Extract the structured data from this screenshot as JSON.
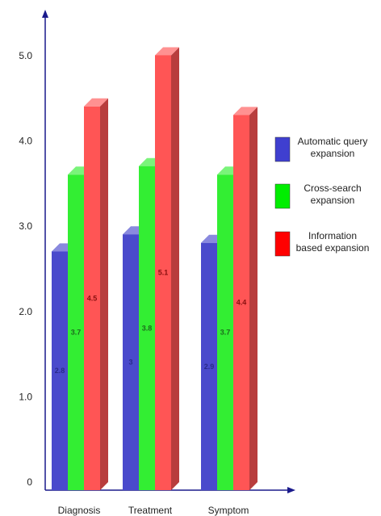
{
  "chart_data": {
    "type": "bar",
    "categories": [
      "Diagnosis",
      "Treatment",
      "Symptom"
    ],
    "yticks": [
      "0",
      "1.0",
      "2.0",
      "3.0",
      "4.0",
      "5.0"
    ],
    "ylim": [
      0,
      5.5
    ],
    "series": [
      {
        "name": "Automatic query expansion",
        "values": [
          2.8,
          3,
          2.9
        ],
        "labels": [
          "2.8",
          "3",
          "2.9"
        ],
        "color": "#4a4acc",
        "label_color": "#2a2a8a"
      },
      {
        "name": "Cross-search expansion",
        "values": [
          3.7,
          3.8,
          3.7
        ],
        "labels": [
          "3.7",
          "3.8",
          "3.7"
        ],
        "color": "#33ee33",
        "label_color": "#1d6b1d"
      },
      {
        "name": "Information based expansion",
        "values": [
          4.5,
          5.1,
          4.4
        ],
        "labels": [
          "4.5",
          "5.1",
          "4.4"
        ],
        "color": "#ff5555",
        "label_color": "#8a1010"
      }
    ],
    "legend": {
      "position": "right",
      "entries": [
        {
          "lines": [
            "Automatic query",
            "expansion"
          ],
          "color": "#3f3fd0"
        },
        {
          "lines": [
            "Cross-search",
            "expansion"
          ],
          "color": "#00ee00"
        },
        {
          "lines": [
            "Information",
            "based expansion"
          ],
          "color": "#ff0000"
        }
      ]
    },
    "grid": false,
    "style": "3d-bars"
  }
}
